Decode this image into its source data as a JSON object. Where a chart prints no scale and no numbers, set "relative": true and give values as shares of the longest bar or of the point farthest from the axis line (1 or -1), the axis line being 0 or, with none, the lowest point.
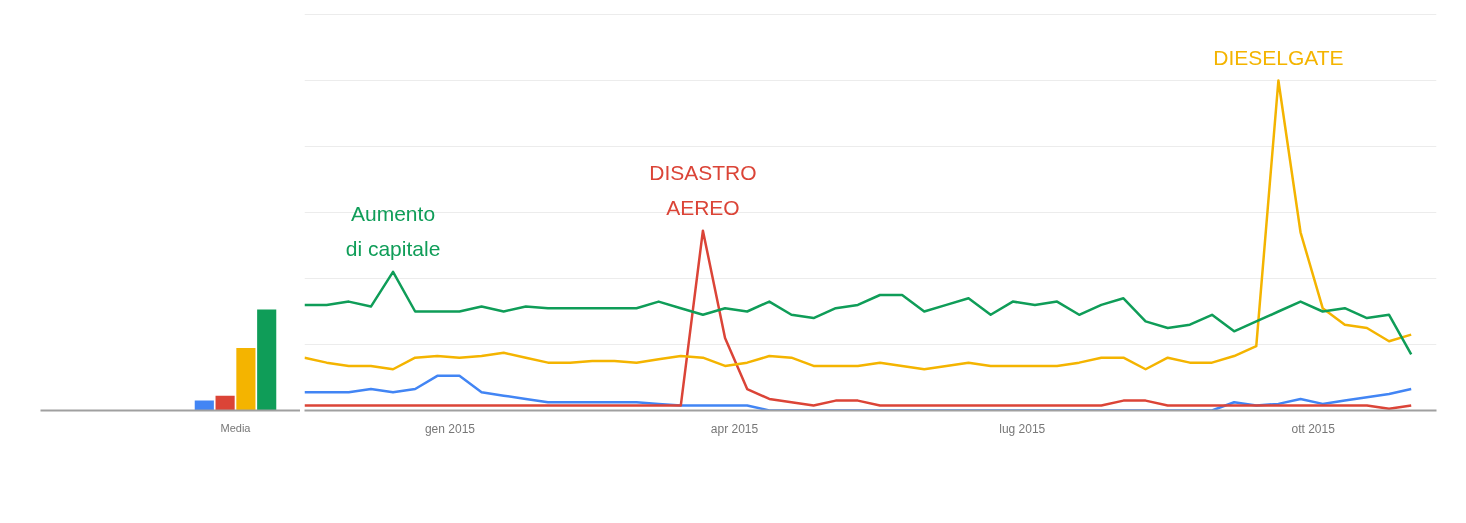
{
  "chart_data": [
    {
      "type": "bar",
      "relative": true,
      "categories": [
        "Media"
      ],
      "grid": false,
      "series": [
        {
          "color": "#4285f4",
          "values": [
            0.1
          ]
        },
        {
          "color": "#db4437",
          "values": [
            0.145
          ]
        },
        {
          "color": "#f4b400",
          "values": [
            0.62
          ]
        },
        {
          "color": "#0f9d58",
          "values": [
            1.0
          ]
        }
      ]
    },
    {
      "type": "line",
      "relative": true,
      "grid": "y",
      "line_style": "solid",
      "x": [
        "2014-11-16",
        "2014-11-23",
        "2014-11-30",
        "2014-12-07",
        "2014-12-14",
        "2014-12-21",
        "2014-12-28",
        "2015-01-04",
        "2015-01-11",
        "2015-01-18",
        "2015-01-25",
        "2015-02-01",
        "2015-02-08",
        "2015-02-15",
        "2015-02-22",
        "2015-03-01",
        "2015-03-08",
        "2015-03-15",
        "2015-03-22",
        "2015-03-29",
        "2015-04-05",
        "2015-04-12",
        "2015-04-19",
        "2015-04-26",
        "2015-05-03",
        "2015-05-10",
        "2015-05-17",
        "2015-05-24",
        "2015-05-31",
        "2015-06-07",
        "2015-06-14",
        "2015-06-21",
        "2015-06-28",
        "2015-07-05",
        "2015-07-12",
        "2015-07-19",
        "2015-07-26",
        "2015-08-02",
        "2015-08-09",
        "2015-08-16",
        "2015-08-23",
        "2015-08-30",
        "2015-09-06",
        "2015-09-13",
        "2015-09-20",
        "2015-09-27",
        "2015-10-04",
        "2015-10-11",
        "2015-10-18",
        "2015-10-25",
        "2015-11-01"
      ],
      "xlim": [
        "2014-11-16",
        "2015-11-09"
      ],
      "xticks": [
        {
          "value": "2015-01-01",
          "label": "gen 2015"
        },
        {
          "value": "2015-04-01",
          "label": "apr 2015"
        },
        {
          "value": "2015-07-01",
          "label": "lug 2015"
        },
        {
          "value": "2015-10-01",
          "label": "ott 2015"
        }
      ],
      "series": [
        {
          "color": "#4285f4",
          "values": [
            0.055,
            0.055,
            0.055,
            0.065,
            0.055,
            0.065,
            0.105,
            0.105,
            0.055,
            0.045,
            0.035,
            0.025,
            0.025,
            0.025,
            0.025,
            0.025,
            0.02,
            0.015,
            0.015,
            0.015,
            0.015,
            0.0,
            0.0,
            0.0,
            0.0,
            0.0,
            0.0,
            0.0,
            0.0,
            0.0,
            0.0,
            0.0,
            0.0,
            0.0,
            0.0,
            0.0,
            0.0,
            0.0,
            0.0,
            0.0,
            0.0,
            0.0,
            0.025,
            0.015,
            0.02,
            0.035,
            0.02,
            0.03,
            0.04,
            0.05,
            0.065
          ]
        },
        {
          "color": "#db4437",
          "values": [
            0.015,
            0.015,
            0.015,
            0.015,
            0.015,
            0.015,
            0.015,
            0.015,
            0.015,
            0.015,
            0.015,
            0.015,
            0.015,
            0.015,
            0.015,
            0.015,
            0.015,
            0.015,
            0.545,
            0.22,
            0.065,
            0.035,
            0.025,
            0.015,
            0.03,
            0.03,
            0.015,
            0.015,
            0.015,
            0.015,
            0.015,
            0.015,
            0.015,
            0.015,
            0.015,
            0.015,
            0.015,
            0.03,
            0.03,
            0.015,
            0.015,
            0.015,
            0.015,
            0.015,
            0.015,
            0.015,
            0.015,
            0.015,
            0.015,
            0.005,
            0.015
          ]
        },
        {
          "color": "#f4b400",
          "values": [
            0.16,
            0.145,
            0.135,
            0.135,
            0.125,
            0.16,
            0.165,
            0.16,
            0.165,
            0.175,
            0.16,
            0.145,
            0.145,
            0.15,
            0.15,
            0.145,
            0.155,
            0.165,
            0.16,
            0.135,
            0.145,
            0.165,
            0.16,
            0.135,
            0.135,
            0.135,
            0.145,
            0.135,
            0.125,
            0.135,
            0.145,
            0.135,
            0.135,
            0.135,
            0.135,
            0.145,
            0.16,
            0.16,
            0.125,
            0.16,
            0.145,
            0.145,
            0.165,
            0.195,
            1.0,
            0.54,
            0.31,
            0.26,
            0.25,
            0.21,
            0.23
          ]
        },
        {
          "color": "#0f9d58",
          "values": [
            0.32,
            0.32,
            0.33,
            0.315,
            0.42,
            0.3,
            0.3,
            0.3,
            0.315,
            0.3,
            0.315,
            0.31,
            0.31,
            0.31,
            0.31,
            0.31,
            0.33,
            0.31,
            0.29,
            0.31,
            0.3,
            0.33,
            0.29,
            0.28,
            0.31,
            0.32,
            0.35,
            0.35,
            0.3,
            0.32,
            0.34,
            0.29,
            0.33,
            0.32,
            0.33,
            0.29,
            0.32,
            0.34,
            0.27,
            0.25,
            0.26,
            0.29,
            0.24,
            0.27,
            0.3,
            0.33,
            0.3,
            0.31,
            0.28,
            0.29,
            0.17
          ]
        }
      ],
      "annotations": [
        {
          "text": "Aumento\ndi capitale",
          "x": "2014-12-14",
          "y": 0.42
        },
        {
          "text": "DISASTRO\nAEREO",
          "x": "2015-03-22",
          "y": 0.545
        },
        {
          "text": "DIESELGATE",
          "x": "2015-09-20",
          "y": 1.0
        }
      ]
    }
  ]
}
